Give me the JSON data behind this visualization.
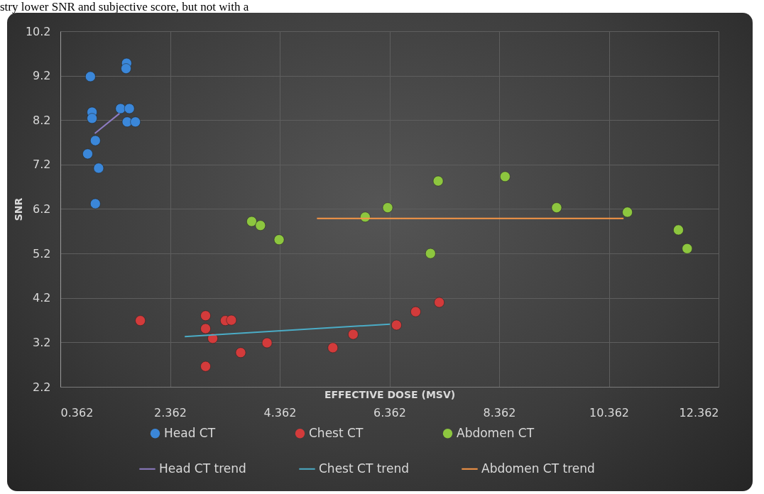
{
  "chart_data": {
    "type": "scatter",
    "xlabel": "EFFECTIVE DOSE (MSV)",
    "ylabel": "SNR",
    "annotations": [
      "stry lower SNR and subjective score, but not with a"
    ],
    "xlim": [
      0.362,
      12.362
    ],
    "xticks": [
      0.362,
      2.362,
      4.362,
      6.362,
      8.362,
      10.362,
      12.362
    ],
    "ylim": [
      2.2,
      10.2
    ],
    "yticks": [
      2.2,
      3.2,
      4.2,
      5.2,
      6.2,
      7.2,
      8.2,
      9.2,
      10.2
    ],
    "grid": true,
    "legend": "bottom",
    "marker": "circle",
    "series": [
      {
        "name": "Head CT",
        "type": "scatter",
        "color": "#3b87d9",
        "x": [
          1.57,
          1.56,
          0.91,
          0.94,
          0.94,
          1.46,
          1.62,
          1.58,
          1.73,
          1.0,
          0.86,
          1.06,
          1.0
        ],
        "values": [
          9.48,
          9.36,
          9.18,
          8.38,
          8.24,
          8.46,
          8.46,
          8.16,
          8.16,
          7.74,
          7.44,
          7.12,
          6.32
        ]
      },
      {
        "name": "Chest CT",
        "type": "scatter",
        "color": "#d33b3b",
        "x": [
          1.82,
          3.01,
          3.01,
          3.14,
          3.37,
          3.48,
          3.01,
          3.65,
          4.13,
          5.33,
          5.7,
          6.49,
          6.84,
          7.27
        ],
        "values": [
          3.69,
          3.8,
          3.51,
          3.29,
          3.69,
          3.7,
          2.66,
          2.97,
          3.19,
          3.08,
          3.38,
          3.59,
          3.89,
          4.1
        ]
      },
      {
        "name": "Abdomen CT",
        "type": "scatter",
        "color": "#8dc63f",
        "x": [
          3.85,
          4.01,
          4.35,
          5.92,
          6.33,
          7.25,
          7.11,
          8.47,
          9.41,
          10.7,
          11.63,
          11.79
        ],
        "values": [
          5.92,
          5.83,
          5.51,
          6.02,
          6.23,
          6.83,
          5.2,
          6.93,
          6.23,
          6.13,
          5.73,
          5.31
        ]
      },
      {
        "name": "Head CT trend",
        "type": "line",
        "marker": "none",
        "color": "#8e7cc3",
        "x": [
          0.99,
          1.44
        ],
        "values": [
          7.9,
          8.35
        ]
      },
      {
        "name": "Chest CT trend",
        "type": "line",
        "marker": "none",
        "color": "#4bacc6",
        "x": [
          2.63,
          6.37
        ],
        "values": [
          3.33,
          3.61
        ]
      },
      {
        "name": "Abdomen CT trend",
        "type": "line",
        "marker": "none",
        "color": "#f79646",
        "x": [
          5.04,
          10.63
        ],
        "values": [
          5.99,
          5.99
        ]
      }
    ]
  }
}
